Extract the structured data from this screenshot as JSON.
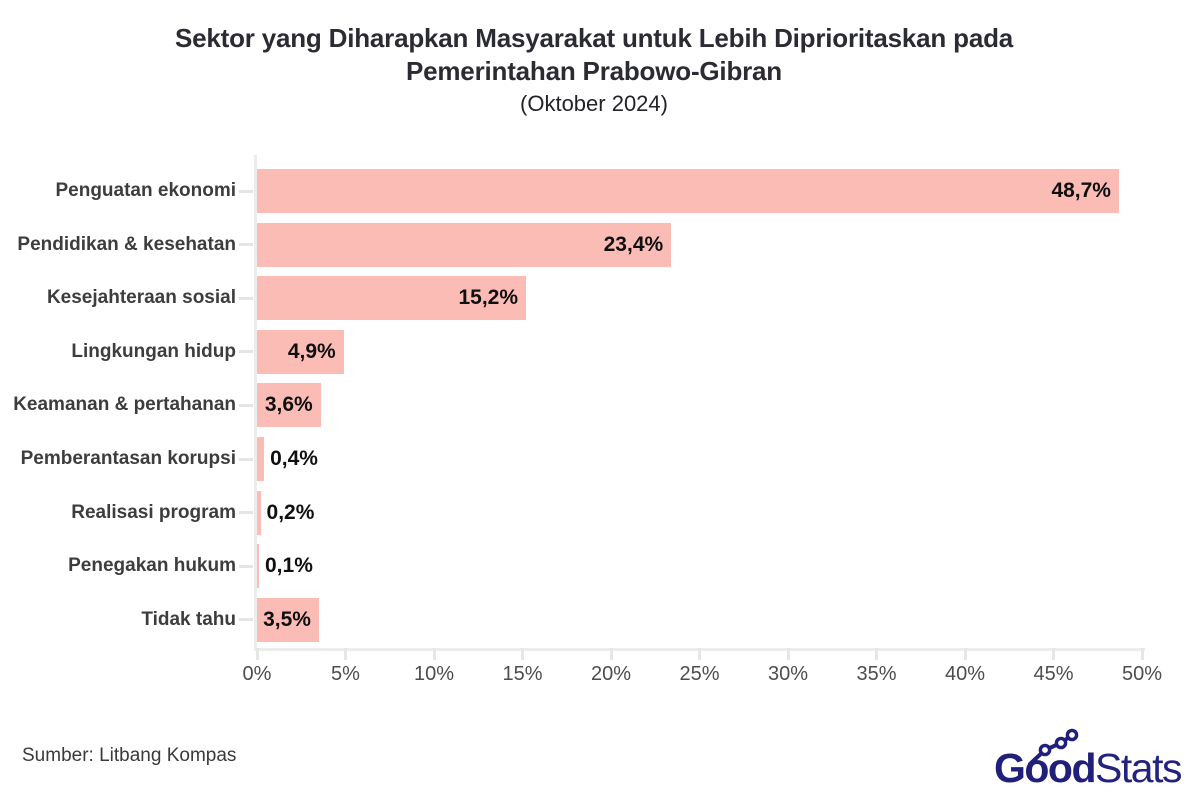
{
  "title": {
    "line1": "Sektor yang Diharapkan Masyarakat untuk Lebih Diprioritaskan pada",
    "line2": "Pemerintahan Prabowo-Gibran",
    "subtitle": "(Oktober 2024)"
  },
  "chart_data": {
    "type": "bar",
    "orientation": "horizontal",
    "title": "Sektor yang Diharapkan Masyarakat untuk Lebih Diprioritaskan pada Pemerintahan Prabowo-Gibran",
    "subtitle": "(Oktober 2024)",
    "categories": [
      "Penguatan ekonomi",
      "Pendidikan & kesehatan",
      "Kesejahteraan sosial",
      "Lingkungan hidup",
      "Keamanan & pertahanan",
      "Pemberantasan korupsi",
      "Realisasi program",
      "Penegakan hukum",
      "Tidak tahu"
    ],
    "values": [
      48.7,
      23.4,
      15.2,
      4.9,
      3.6,
      0.4,
      0.2,
      0.1,
      3.5
    ],
    "value_labels": [
      "48,7%",
      "23,4%",
      "15,2%",
      "4,9%",
      "3,6%",
      "0,4%",
      "0,2%",
      "0,1%",
      "3,5%"
    ],
    "x_tick_labels": [
      "0%",
      "5%",
      "10%",
      "15%",
      "20%",
      "25%",
      "30%",
      "35%",
      "40%",
      "45%",
      "50%"
    ],
    "xlim": [
      0,
      50
    ],
    "xlabel": "",
    "ylabel": "",
    "grid": false,
    "legend": null,
    "bar_color": "#fbbcb6",
    "value_label_color": "#101010",
    "category_label_color": "#3d3d3d",
    "axis_color": "#ececec"
  },
  "footer": {
    "source": "Sumber: Litbang Kompas"
  },
  "logo": {
    "part_bold": "Good",
    "part_light": "Stats",
    "color": "#20207a",
    "icon": "trendline-with-dots-icon"
  }
}
